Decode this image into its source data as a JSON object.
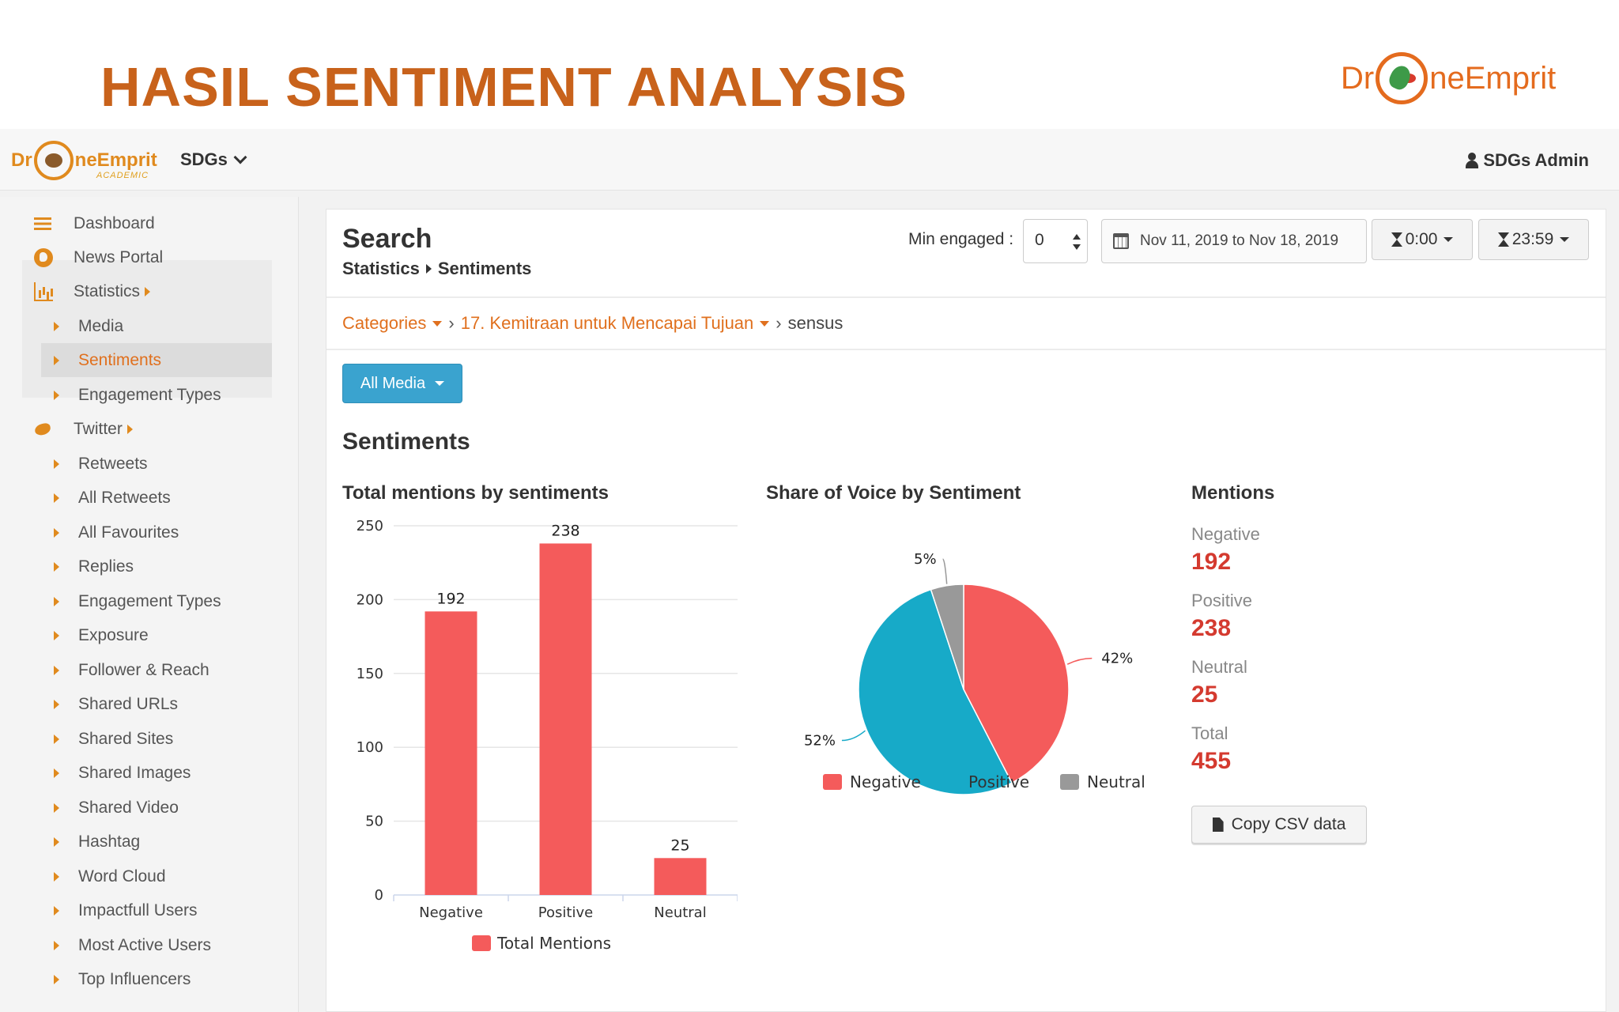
{
  "slide": {
    "title": "HASIL SENTIMENT ANALYSIS",
    "logo_left": "Dr",
    "logo_right": "neEmprit"
  },
  "topbar": {
    "logo_left": "Dr",
    "logo_right": "neEmprit",
    "logo_sub": "ACADEMIC",
    "org_label": "SDGs",
    "user_label": "SDGs Admin"
  },
  "sidebar": {
    "items": [
      {
        "label": "Dashboard",
        "icon": "list-icon"
      },
      {
        "label": "News Portal",
        "icon": "globe-icon"
      },
      {
        "label": "Statistics",
        "icon": "bar-chart-icon"
      },
      {
        "label": "Media"
      },
      {
        "label": "Sentiments"
      },
      {
        "label": "Engagement Types"
      },
      {
        "label": "Twitter",
        "icon": "twitter-icon"
      },
      {
        "label": "Retweets"
      },
      {
        "label": "All Retweets"
      },
      {
        "label": "All Favourites"
      },
      {
        "label": "Replies"
      },
      {
        "label": "Engagement Types"
      },
      {
        "label": "Exposure"
      },
      {
        "label": "Follower & Reach"
      },
      {
        "label": "Shared URLs"
      },
      {
        "label": "Shared Sites"
      },
      {
        "label": "Shared Images"
      },
      {
        "label": "Shared Video"
      },
      {
        "label": "Hashtag"
      },
      {
        "label": "Word Cloud"
      },
      {
        "label": "Impactfull Users"
      },
      {
        "label": "Most Active Users"
      },
      {
        "label": "Top Influencers"
      }
    ]
  },
  "header": {
    "title": "Search",
    "sub_parent": "Statistics",
    "sub_current": "Sentiments",
    "min_engaged_label": "Min engaged :",
    "min_engaged_value": "0",
    "date_range": "Nov 11, 2019 to Nov 18, 2019",
    "time_start": "0:00",
    "time_end": "23:59"
  },
  "breadcrumb": {
    "categories": "Categories",
    "category": "17. Kemitraan untuk Mencapai Tujuan",
    "current": "sensus"
  },
  "media_filter": "All Media",
  "section_title": "Sentiments",
  "bar_chart_title": "Total mentions by sentiments",
  "pie_chart_title": "Share of Voice by Sentiment",
  "mentions": {
    "title": "Mentions",
    "items": [
      {
        "label": "Negative",
        "value": "192"
      },
      {
        "label": "Positive",
        "value": "238"
      },
      {
        "label": "Neutral",
        "value": "25"
      },
      {
        "label": "Total",
        "value": "455"
      }
    ],
    "csv_button": "Copy CSV data"
  },
  "colors": {
    "accent": "#e0701e",
    "negative": "#f45b5b",
    "positive": "#17aac8",
    "neutral": "#999999",
    "value_red": "#d43a2f"
  },
  "chart_data": [
    {
      "type": "bar",
      "title": "Total mentions by sentiments",
      "categories": [
        "Negative",
        "Positive",
        "Neutral"
      ],
      "series": [
        {
          "name": "Total Mentions",
          "values": [
            192,
            238,
            25
          ]
        }
      ],
      "ylim": [
        0,
        250
      ],
      "yticks": [
        0,
        50,
        100,
        150,
        200,
        250
      ],
      "grid": true,
      "legend": "bottom"
    },
    {
      "type": "pie",
      "title": "Share of Voice by Sentiment",
      "labels": [
        "Negative",
        "Positive",
        "Neutral"
      ],
      "values": [
        42,
        52,
        5
      ],
      "value_labels": [
        "42%",
        "52%",
        "5%"
      ],
      "legend": "bottom"
    }
  ]
}
